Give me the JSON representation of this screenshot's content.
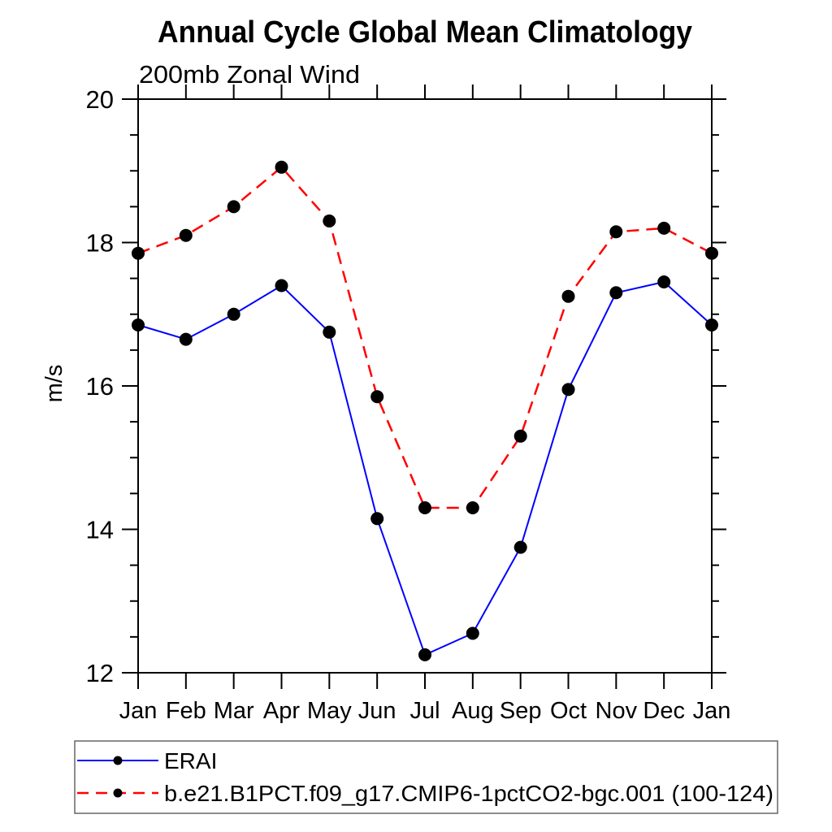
{
  "chart_data": {
    "type": "line",
    "title": "Annual Cycle Global Mean Climatology",
    "subtitle": "200mb Zonal Wind",
    "ylabel": "m/s",
    "xlabel": "",
    "categories": [
      "Jan",
      "Feb",
      "Mar",
      "Apr",
      "May",
      "Jun",
      "Jul",
      "Aug",
      "Sep",
      "Oct",
      "Nov",
      "Dec",
      "Jan"
    ],
    "ylim": [
      12,
      20
    ],
    "ytick_major": [
      12,
      14,
      16,
      18,
      20
    ],
    "ytick_minor_step": 0.5,
    "grid": false,
    "frame": true,
    "colors": {
      "axis": "#000000",
      "text": "#000000",
      "legend_border": "#666666"
    },
    "series": [
      {
        "name": "ERAI",
        "color": "#0000ff",
        "line_style": "solid",
        "marker": "circle",
        "marker_color": "#000000",
        "values": [
          16.85,
          16.65,
          17.0,
          17.4,
          16.75,
          14.15,
          12.25,
          12.55,
          13.75,
          15.95,
          17.3,
          17.45,
          16.85
        ]
      },
      {
        "name": "b.e21.B1PCT.f09_g17.CMIP6-1pctCO2-bgc.001 (100-124)",
        "color": "#ff0000",
        "line_style": "dashed",
        "marker": "circle",
        "marker_color": "#000000",
        "values": [
          17.85,
          18.1,
          18.5,
          19.05,
          18.3,
          15.85,
          14.3,
          14.3,
          15.3,
          17.25,
          18.15,
          18.2,
          17.85
        ]
      }
    ],
    "legend": {
      "position": "bottom-left",
      "entries": [
        "ERAI",
        "b.e21.B1PCT.f09_g17.CMIP6-1pctCO2-bgc.001 (100-124)"
      ]
    }
  }
}
